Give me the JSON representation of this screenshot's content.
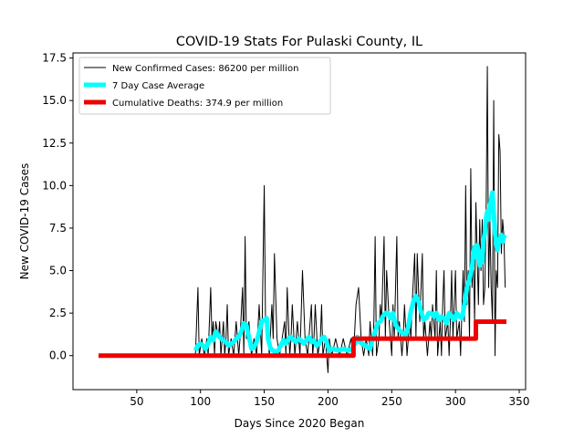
{
  "chart_data": {
    "type": "line",
    "title": "COVID-19 Stats For Pulaski County, IL",
    "xlabel": "Days Since 2020 Began",
    "ylabel": "New COVID-19 Cases",
    "xlim": [
      0,
      355
    ],
    "ylim": [
      -2.0,
      17.8
    ],
    "xticks": [
      50,
      100,
      150,
      200,
      250,
      300,
      350
    ],
    "xtick_labels": [
      "50",
      "100",
      "150",
      "200",
      "250",
      "300",
      "350"
    ],
    "yticks": [
      0,
      2.5,
      5,
      7.5,
      10,
      12.5,
      15,
      17.5
    ],
    "ytick_labels": [
      "0.0",
      "2.5",
      "5.0",
      "7.5",
      "10.0",
      "12.5",
      "15.0",
      "17.5"
    ],
    "legend_position": "top-left",
    "series": [
      {
        "name": "New Confirmed Cases: 86200 per million",
        "color": "#000000",
        "points": [
          [
            96,
            0
          ],
          [
            98,
            4
          ],
          [
            99,
            0
          ],
          [
            101,
            1
          ],
          [
            103,
            0
          ],
          [
            105,
            1
          ],
          [
            106,
            0
          ],
          [
            108,
            4
          ],
          [
            109,
            1
          ],
          [
            110,
            2
          ],
          [
            111,
            0
          ],
          [
            112,
            2
          ],
          [
            114,
            1
          ],
          [
            115,
            2
          ],
          [
            116,
            0
          ],
          [
            118,
            2
          ],
          [
            119,
            0
          ],
          [
            120,
            1
          ],
          [
            121,
            3
          ],
          [
            122,
            0
          ],
          [
            124,
            1
          ],
          [
            126,
            0
          ],
          [
            128,
            2
          ],
          [
            130,
            0
          ],
          [
            131,
            1
          ],
          [
            133,
            4
          ],
          [
            134,
            0
          ],
          [
            135,
            7
          ],
          [
            136,
            1
          ],
          [
            138,
            2
          ],
          [
            140,
            0
          ],
          [
            142,
            1
          ],
          [
            144,
            0
          ],
          [
            146,
            3
          ],
          [
            148,
            0
          ],
          [
            150,
            10
          ],
          [
            151,
            2
          ],
          [
            153,
            1
          ],
          [
            154,
            0
          ],
          [
            156,
            3
          ],
          [
            157,
            1
          ],
          [
            158,
            6
          ],
          [
            160,
            1
          ],
          [
            162,
            0
          ],
          [
            164,
            1
          ],
          [
            166,
            2
          ],
          [
            167,
            0
          ],
          [
            168,
            4
          ],
          [
            170,
            0
          ],
          [
            171,
            1
          ],
          [
            172,
            3
          ],
          [
            174,
            0
          ],
          [
            176,
            2
          ],
          [
            178,
            0
          ],
          [
            180,
            5
          ],
          [
            182,
            1
          ],
          [
            184,
            0
          ],
          [
            186,
            2
          ],
          [
            187,
            3
          ],
          [
            188,
            0
          ],
          [
            189,
            1
          ],
          [
            190,
            3
          ],
          [
            192,
            0
          ],
          [
            194,
            1
          ],
          [
            195,
            3
          ],
          [
            196,
            0
          ],
          [
            198,
            1
          ],
          [
            200,
            -1
          ],
          [
            201,
            1
          ],
          [
            203,
            0
          ],
          [
            206,
            1
          ],
          [
            209,
            0
          ],
          [
            212,
            1
          ],
          [
            215,
            0
          ],
          [
            218,
            1
          ],
          [
            220,
            0
          ],
          [
            222,
            3
          ],
          [
            224,
            4
          ],
          [
            226,
            1
          ],
          [
            228,
            0
          ],
          [
            230,
            1
          ],
          [
            232,
            0
          ],
          [
            233,
            2
          ],
          [
            235,
            0
          ],
          [
            236,
            2
          ],
          [
            237,
            7
          ],
          [
            238,
            0
          ],
          [
            240,
            1
          ],
          [
            241,
            3
          ],
          [
            242,
            2
          ],
          [
            244,
            7
          ],
          [
            245,
            1
          ],
          [
            246,
            5
          ],
          [
            248,
            2
          ],
          [
            250,
            0
          ],
          [
            251,
            3
          ],
          [
            252,
            1
          ],
          [
            254,
            7
          ],
          [
            255,
            1
          ],
          [
            256,
            2
          ],
          [
            258,
            0
          ],
          [
            259,
            1
          ],
          [
            260,
            3
          ],
          [
            262,
            0
          ],
          [
            264,
            2
          ],
          [
            265,
            1
          ],
          [
            266,
            3
          ],
          [
            268,
            6
          ],
          [
            269,
            1
          ],
          [
            270,
            6
          ],
          [
            272,
            2
          ],
          [
            274,
            6
          ],
          [
            275,
            1
          ],
          [
            276,
            2
          ],
          [
            278,
            0
          ],
          [
            280,
            2
          ],
          [
            281,
            1
          ],
          [
            282,
            3
          ],
          [
            284,
            1
          ],
          [
            285,
            5
          ],
          [
            286,
            0
          ],
          [
            288,
            2
          ],
          [
            289,
            0
          ],
          [
            290,
            3
          ],
          [
            291,
            5
          ],
          [
            292,
            1
          ],
          [
            294,
            2
          ],
          [
            295,
            0
          ],
          [
            296,
            2
          ],
          [
            297,
            5
          ],
          [
            298,
            1
          ],
          [
            300,
            5
          ],
          [
            301,
            1
          ],
          [
            303,
            2
          ],
          [
            304,
            0
          ],
          [
            306,
            5
          ],
          [
            307,
            2
          ],
          [
            308,
            10
          ],
          [
            309,
            3
          ],
          [
            310,
            5
          ],
          [
            311,
            1
          ],
          [
            312,
            11
          ],
          [
            313,
            4
          ],
          [
            314,
            6
          ],
          [
            315,
            2
          ],
          [
            316,
            9
          ],
          [
            318,
            3
          ],
          [
            319,
            8
          ],
          [
            320,
            5
          ],
          [
            321,
            8
          ],
          [
            322,
            3
          ],
          [
            323,
            4
          ],
          [
            324,
            8
          ],
          [
            325,
            17
          ],
          [
            326,
            4
          ],
          [
            327,
            8
          ],
          [
            328,
            4
          ],
          [
            329,
            2
          ],
          [
            330,
            15
          ],
          [
            331,
            0
          ],
          [
            332,
            5
          ],
          [
            333,
            4
          ],
          [
            334,
            13
          ],
          [
            335,
            12
          ],
          [
            336,
            6
          ],
          [
            337,
            8
          ],
          [
            338,
            7
          ],
          [
            339,
            4
          ]
        ]
      },
      {
        "name": "7 Day Case Average",
        "color": "#00ffff",
        "points": [
          [
            96,
            0.3
          ],
          [
            98,
            0.6
          ],
          [
            100,
            0.7
          ],
          [
            102,
            0.6
          ],
          [
            104,
            0.4
          ],
          [
            106,
            0.7
          ],
          [
            108,
            1.1
          ],
          [
            110,
            0.9
          ],
          [
            112,
            1.4
          ],
          [
            114,
            1.2
          ],
          [
            116,
            1.0
          ],
          [
            118,
            0.9
          ],
          [
            120,
            0.8
          ],
          [
            122,
            0.6
          ],
          [
            124,
            0.7
          ],
          [
            126,
            0.8
          ],
          [
            128,
            1.0
          ],
          [
            130,
            1.1
          ],
          [
            132,
            1.4
          ],
          [
            134,
            1.9
          ],
          [
            136,
            1.8
          ],
          [
            138,
            1.1
          ],
          [
            140,
            0.4
          ],
          [
            142,
            0.5
          ],
          [
            144,
            0.8
          ],
          [
            146,
            1.4
          ],
          [
            148,
            2.0
          ],
          [
            150,
            2.1
          ],
          [
            152,
            2.2
          ],
          [
            153,
            1.0
          ],
          [
            155,
            0.4
          ],
          [
            157,
            0.3
          ],
          [
            159,
            0.2
          ],
          [
            161,
            0.3
          ],
          [
            163,
            0.6
          ],
          [
            165,
            0.9
          ],
          [
            167,
            0.7
          ],
          [
            169,
            1.0
          ],
          [
            171,
            1.1
          ],
          [
            173,
            0.9
          ],
          [
            175,
            0.8
          ],
          [
            177,
            1.0
          ],
          [
            179,
            0.9
          ],
          [
            181,
            0.7
          ],
          [
            183,
            0.9
          ],
          [
            185,
            1.1
          ],
          [
            187,
            0.8
          ],
          [
            189,
            0.9
          ],
          [
            191,
            0.6
          ],
          [
            193,
            0.7
          ],
          [
            195,
            1.0
          ],
          [
            197,
            1.1
          ],
          [
            199,
            0.8
          ],
          [
            201,
            0.3
          ],
          [
            204,
            0.4
          ],
          [
            208,
            0.3
          ],
          [
            212,
            0.4
          ],
          [
            216,
            0.3
          ],
          [
            219,
            0.4
          ],
          [
            221,
            0.7
          ],
          [
            223,
            1.1
          ],
          [
            225,
            0.8
          ],
          [
            227,
            0.7
          ],
          [
            229,
            0.6
          ],
          [
            231,
            0.5
          ],
          [
            233,
            0.4
          ],
          [
            235,
            1.0
          ],
          [
            237,
            1.4
          ],
          [
            239,
            1.9
          ],
          [
            241,
            2.0
          ],
          [
            243,
            2.3
          ],
          [
            245,
            2.5
          ],
          [
            247,
            2.5
          ],
          [
            249,
            2.2
          ],
          [
            251,
            2.5
          ],
          [
            253,
            1.8
          ],
          [
            255,
            1.6
          ],
          [
            257,
            1.4
          ],
          [
            259,
            1.3
          ],
          [
            261,
            1.2
          ],
          [
            263,
            1.7
          ],
          [
            265,
            2.6
          ],
          [
            267,
            3.2
          ],
          [
            269,
            3.5
          ],
          [
            271,
            3.2
          ],
          [
            273,
            2.6
          ],
          [
            275,
            2.1
          ],
          [
            277,
            2.2
          ],
          [
            279,
            2.5
          ],
          [
            281,
            2.5
          ],
          [
            283,
            2.3
          ],
          [
            285,
            2.5
          ],
          [
            287,
            2.1
          ],
          [
            289,
            2.3
          ],
          [
            291,
            2.2
          ],
          [
            293,
            1.9
          ],
          [
            295,
            2.5
          ],
          [
            297,
            2.3
          ],
          [
            299,
            2.1
          ],
          [
            301,
            2.5
          ],
          [
            303,
            2.3
          ],
          [
            305,
            2.2
          ],
          [
            307,
            3.0
          ],
          [
            309,
            4.0
          ],
          [
            311,
            4.5
          ],
          [
            313,
            5.2
          ],
          [
            314,
            6.0
          ],
          [
            315,
            6.4
          ],
          [
            316,
            5.8
          ],
          [
            317,
            6.5
          ],
          [
            318,
            6.2
          ],
          [
            319,
            5.3
          ],
          [
            320,
            6.0
          ],
          [
            321,
            5.5
          ],
          [
            322,
            6.8
          ],
          [
            323,
            7.2
          ],
          [
            324,
            8.1
          ],
          [
            325,
            8.5
          ],
          [
            326,
            8.0
          ],
          [
            327,
            8.8
          ],
          [
            328,
            9.2
          ],
          [
            329,
            9.6
          ],
          [
            330,
            8.4
          ],
          [
            331,
            7.2
          ],
          [
            332,
            6.6
          ],
          [
            333,
            6.2
          ],
          [
            334,
            6.7
          ],
          [
            335,
            6.9
          ],
          [
            336,
            7.1
          ],
          [
            337,
            6.7
          ],
          [
            338,
            7.0
          ],
          [
            339,
            6.9
          ]
        ]
      },
      {
        "name": "Cumulative Deaths: 374.9 per million",
        "color": "#ee0000",
        "points": [
          [
            20,
            0
          ],
          [
            220,
            0
          ],
          [
            220,
            1
          ],
          [
            316,
            1
          ],
          [
            316,
            2
          ],
          [
            340,
            2
          ]
        ]
      }
    ]
  }
}
